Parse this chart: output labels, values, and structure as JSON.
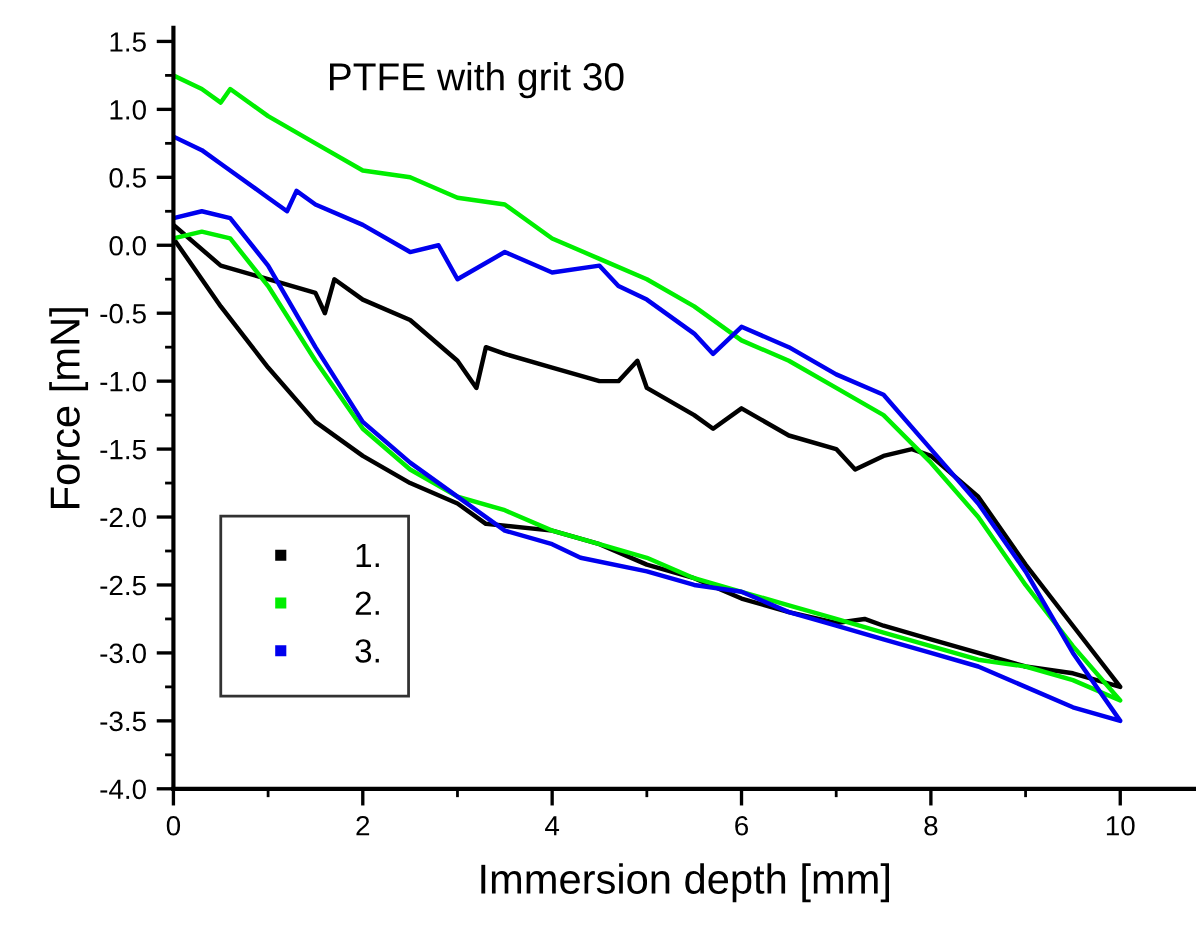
{
  "chart_data": {
    "type": "line",
    "title": "PTFE with grit 30",
    "xlabel": "Immersion depth [mm]",
    "ylabel": "Force [mN]",
    "xlim": [
      0,
      10.8
    ],
    "ylim": [
      -4.0,
      1.6
    ],
    "xticks": [
      0,
      2,
      4,
      6,
      8,
      10
    ],
    "yticks": [
      {
        "value": -4,
        "label": "-4.0"
      },
      -3.5,
      {
        "value": -3,
        "label": "-3.0"
      },
      -2.5,
      {
        "value": -2,
        "label": "-2.0"
      },
      -1.5,
      {
        "value": -1,
        "label": "-1.0"
      },
      -0.5,
      {
        "value": 0,
        "label": "0.0"
      },
      0.5,
      {
        "value": 1,
        "label": "1.0"
      },
      1.5
    ],
    "grid": false,
    "legend": "bottom left",
    "marker": "none",
    "line_style": "solid",
    "series": [
      {
        "name": "1.",
        "color": "#000000",
        "x": [
          0,
          0.5,
          1,
          1.5,
          2,
          2.5,
          3,
          3.3,
          4,
          4.5,
          5,
          5.5,
          6,
          6.5,
          7,
          7.3,
          7.5,
          8,
          8.5,
          9,
          9.5,
          10,
          9.5,
          9,
          8.5,
          8,
          7.8,
          7.5,
          7.2,
          7,
          6.5,
          6,
          5.7,
          5.5,
          5,
          4.9,
          4.7,
          4.5,
          4,
          3.5,
          3.3,
          3.2,
          3,
          2.5,
          2,
          1.7,
          1.6,
          1.5,
          1,
          0.5,
          0
        ],
        "values": [
          0.05,
          -0.45,
          -0.9,
          -1.3,
          -1.55,
          -1.75,
          -1.9,
          -2.05,
          -2.1,
          -2.2,
          -2.35,
          -2.45,
          -2.6,
          -2.7,
          -2.78,
          -2.75,
          -2.8,
          -2.9,
          -3.0,
          -3.1,
          -3.15,
          -3.25,
          -2.8,
          -2.35,
          -1.85,
          -1.55,
          -1.5,
          -1.55,
          -1.65,
          -1.5,
          -1.4,
          -1.2,
          -1.35,
          -1.25,
          -1.05,
          -0.85,
          -1.0,
          -1.0,
          -0.9,
          -0.8,
          -0.75,
          -1.05,
          -0.85,
          -0.55,
          -0.4,
          -0.25,
          -0.5,
          -0.35,
          -0.25,
          -0.15,
          0.15
        ]
      },
      {
        "name": "2.",
        "color": "#00ee00",
        "x": [
          0,
          0.3,
          0.6,
          1,
          1.5,
          2,
          2.5,
          3,
          3.5,
          4,
          4.5,
          5,
          5.5,
          6,
          6.5,
          7,
          7.5,
          8,
          8.5,
          9,
          9.5,
          10,
          9.5,
          9,
          8.5,
          8,
          7.5,
          7,
          6.5,
          6,
          5.5,
          5,
          4.5,
          4,
          3.5,
          3,
          2.5,
          2,
          1.5,
          1,
          0.6,
          0.5,
          0.3,
          0
        ],
        "values": [
          0.05,
          0.1,
          0.05,
          -0.3,
          -0.85,
          -1.35,
          -1.65,
          -1.85,
          -1.95,
          -2.1,
          -2.2,
          -2.3,
          -2.45,
          -2.55,
          -2.65,
          -2.75,
          -2.85,
          -2.95,
          -3.05,
          -3.1,
          -3.2,
          -3.35,
          -2.95,
          -2.5,
          -2.0,
          -1.6,
          -1.25,
          -1.05,
          -0.85,
          -0.7,
          -0.45,
          -0.25,
          -0.1,
          0.05,
          0.3,
          0.35,
          0.5,
          0.55,
          0.75,
          0.95,
          1.15,
          1.05,
          1.15,
          1.25
        ]
      },
      {
        "name": "3.",
        "color": "#0000ee",
        "x": [
          0,
          0.3,
          0.6,
          1,
          1.5,
          2,
          2.5,
          3,
          3.5,
          4,
          4.3,
          5,
          5.5,
          6,
          6.5,
          7,
          7.5,
          8,
          8.5,
          9,
          9.5,
          10,
          9.5,
          9,
          8.5,
          8,
          7.5,
          7,
          6.5,
          6,
          5.7,
          5.5,
          5,
          4.7,
          4.5,
          4,
          3.5,
          3,
          2.8,
          2.5,
          2,
          1.5,
          1.3,
          1.2,
          1,
          0.5,
          0.3,
          0
        ],
        "values": [
          0.2,
          0.25,
          0.2,
          -0.15,
          -0.75,
          -1.3,
          -1.6,
          -1.85,
          -2.1,
          -2.2,
          -2.3,
          -2.4,
          -2.5,
          -2.55,
          -2.7,
          -2.8,
          -2.9,
          -3.0,
          -3.1,
          -3.25,
          -3.4,
          -3.5,
          -3.0,
          -2.4,
          -1.9,
          -1.5,
          -1.1,
          -0.95,
          -0.75,
          -0.6,
          -0.8,
          -0.65,
          -0.4,
          -0.3,
          -0.15,
          -0.2,
          -0.05,
          -0.25,
          0.0,
          -0.05,
          0.15,
          0.3,
          0.4,
          0.25,
          0.35,
          0.6,
          0.7,
          0.8
        ]
      }
    ]
  }
}
